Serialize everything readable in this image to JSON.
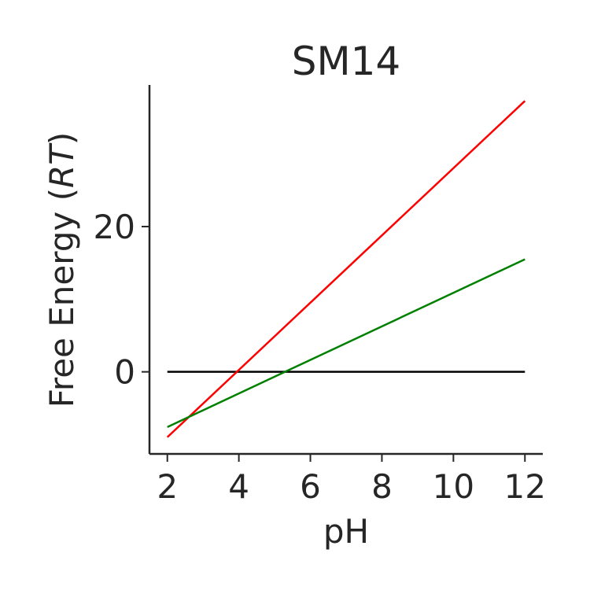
{
  "chart_data": {
    "type": "line",
    "title": "SM14",
    "xlabel": "pH",
    "ylabel_prefix": "Free Energy (",
    "ylabel_italic": "RT",
    "ylabel_suffix": ")",
    "xlim": [
      1.5,
      12.5
    ],
    "ylim": [
      -11.3,
      39.5
    ],
    "xticks": [
      2,
      4,
      6,
      8,
      10,
      12
    ],
    "yticks": [
      0,
      20
    ],
    "grid": false,
    "legend": "none",
    "series": [
      {
        "color": "#000000",
        "x": [
          2,
          12
        ],
        "y": [
          0,
          0
        ]
      },
      {
        "color": "#ff0000",
        "x": [
          2,
          12
        ],
        "y": [
          -9.0,
          37.3
        ]
      },
      {
        "color": "#008000",
        "x": [
          2,
          12
        ],
        "y": [
          -7.6,
          15.5
        ]
      }
    ]
  }
}
